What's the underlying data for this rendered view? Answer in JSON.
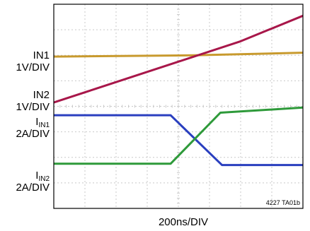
{
  "chart_data": {
    "type": "line",
    "title": "",
    "xlabel": "200ns/DIV",
    "caption": "4227 TA01b",
    "x_divisions": 8,
    "y_divisions": 8,
    "grid": true,
    "channel_labels": [
      {
        "id": "in1",
        "line1": "IN1",
        "line2": "1V/DIV"
      },
      {
        "id": "in2",
        "line1": "IN2",
        "line2": "1V/DIV"
      },
      {
        "id": "iin1",
        "main": "I",
        "sub": "IN1",
        "line2": "2A/DIV"
      },
      {
        "id": "iin2",
        "main": "I",
        "sub": "IN2",
        "line2": "2A/DIV"
      }
    ],
    "series": [
      {
        "name": "IN1",
        "color": "#c89a2e",
        "points": [
          [
            0,
            5.95
          ],
          [
            4.5,
            6.0
          ],
          [
            8,
            6.1
          ]
        ]
      },
      {
        "name": "IN2",
        "color": "#a8174a",
        "points": [
          [
            0,
            4.15
          ],
          [
            2,
            4.95
          ],
          [
            4,
            5.75
          ],
          [
            6,
            6.55
          ],
          [
            8,
            7.55
          ]
        ]
      },
      {
        "name": "I_IN1",
        "color": "#2a3fbf",
        "points": [
          [
            0,
            3.65
          ],
          [
            3.75,
            3.65
          ],
          [
            5.4,
            1.7
          ],
          [
            8,
            1.7
          ]
        ]
      },
      {
        "name": "I_IN2",
        "color": "#2e9a3a",
        "points": [
          [
            0,
            1.75
          ],
          [
            3.75,
            1.75
          ],
          [
            5.35,
            3.75
          ],
          [
            8,
            3.95
          ]
        ]
      }
    ]
  }
}
